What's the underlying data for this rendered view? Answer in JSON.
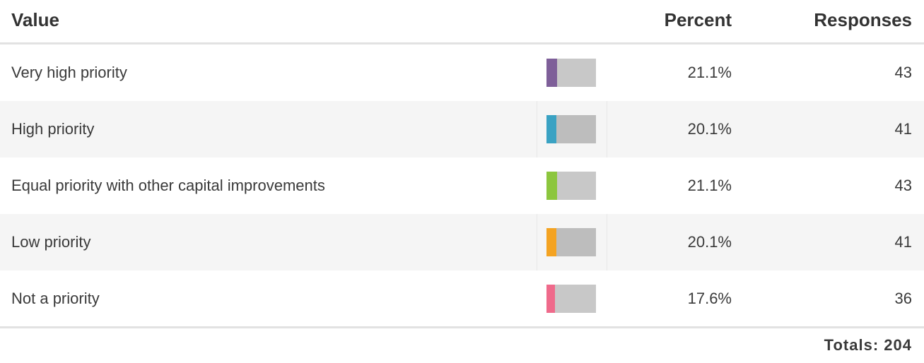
{
  "table": {
    "header": {
      "value": "Value",
      "percent": "Percent",
      "responses": "Responses"
    },
    "rows": [
      {
        "value": "Very high priority",
        "percent": 21.1,
        "percent_label": "21.1%",
        "responses": 43,
        "color": "#7e5f99"
      },
      {
        "value": "High priority",
        "percent": 20.1,
        "percent_label": "20.1%",
        "responses": 41,
        "color": "#3aa2c3"
      },
      {
        "value": "Equal priority with other capital improvements",
        "percent": 21.1,
        "percent_label": "21.1%",
        "responses": 43,
        "color": "#8cc63e"
      },
      {
        "value": "Low priority",
        "percent": 20.1,
        "percent_label": "20.1%",
        "responses": 41,
        "color": "#f4a322"
      },
      {
        "value": "Not a priority",
        "percent": 17.6,
        "percent_label": "17.6%",
        "responses": 36,
        "color": "#ef6a8b"
      }
    ],
    "totals_label": "Totals:",
    "totals": 204
  }
}
